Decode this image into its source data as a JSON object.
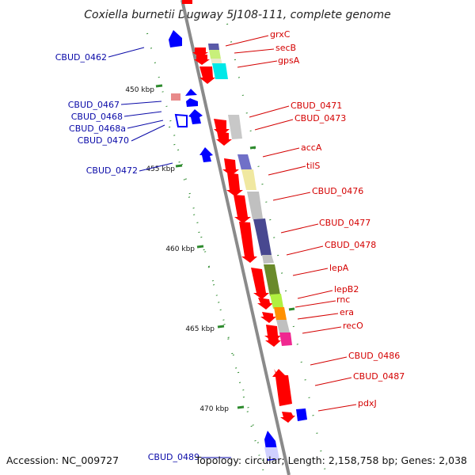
{
  "title": "Coxiella burnetii Dugway 5J108-111, complete genome",
  "footer": {
    "accession": "Accession: NC_009727",
    "stats": "Topology: circular; Length: 2,158,758 bp; Genes: 2,038"
  },
  "ticks": [
    "450 kbp",
    "455 kbp",
    "460 kbp",
    "465 kbp",
    "470 kbp"
  ],
  "labels_reverse": [
    "CBUD_0462",
    "CBUD_0467",
    "CBUD_0468",
    "CBUD_0468a",
    "CBUD_0470",
    "CBUD_0472",
    "CBUD_0489"
  ],
  "labels_forward": [
    "grxC",
    "secB",
    "gpsA",
    "CBUD_0471",
    "CBUD_0473",
    "accA",
    "tilS",
    "CBUD_0476",
    "CBUD_0477",
    "CBUD_0478",
    "lepA",
    "lepB2",
    "rnc",
    "era",
    "recO",
    "CBUD_0486",
    "CBUD_0487",
    "pdxJ"
  ],
  "colors": {
    "backbone": "#8a8a8a",
    "forward_gene": "#ff0000",
    "reverse_gene": "#0000ff",
    "forward_label": "#d40000",
    "reverse_label": "#0a0aa8",
    "tick": "#2e8b2e"
  }
}
